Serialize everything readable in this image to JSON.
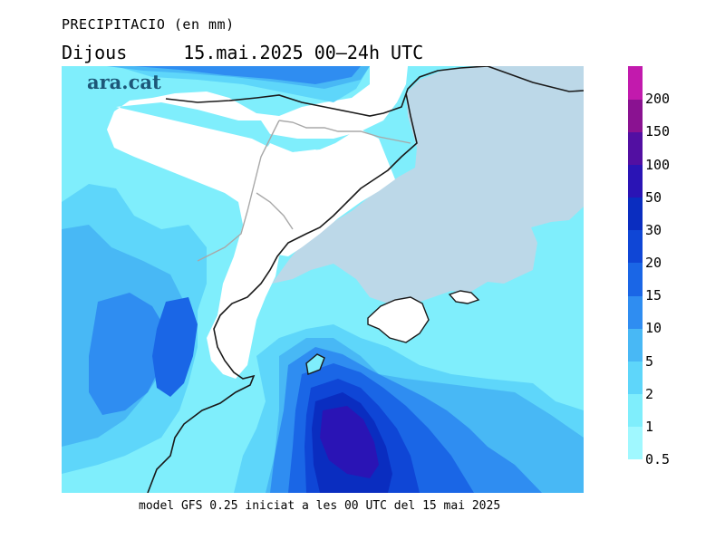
{
  "title": "PRECIPITACIO (en mm)",
  "day": "Dijous",
  "period": "15.mai.2025 00—24h UTC",
  "brand": "ara.cat",
  "footer": "model GFS 0.25 iniciat a les 00 UTC del 15 mai 2025",
  "legend": {
    "levels": [
      "0.5",
      "1",
      "2",
      "5",
      "10",
      "15",
      "20",
      "30",
      "50",
      "100",
      "150",
      "200"
    ],
    "colors": [
      "#a0f8ff",
      "#7feefc",
      "#5ed6fa",
      "#48b8f5",
      "#2f8df1",
      "#1a66e6",
      "#0f46d6",
      "#0a2dc0",
      "#2a14b5",
      "#520fa2",
      "#8a1291",
      "#c21aad"
    ]
  },
  "map_colors": {
    "sea_dry": "#bcd8e8",
    "land_dry": "#ffffff",
    "coast": "#1a1a1a",
    "border": "#a8a8a8"
  }
}
